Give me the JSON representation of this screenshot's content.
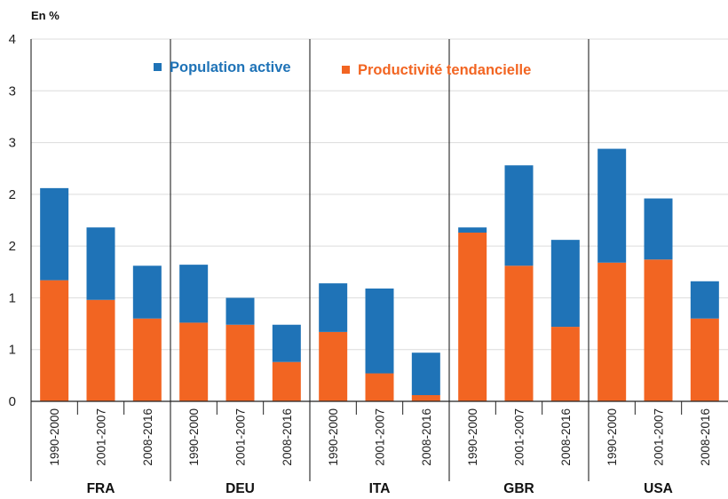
{
  "chart_data": {
    "type": "bar",
    "stacked": true,
    "unit_label": "En %",
    "y_ticks": [
      "0",
      "1",
      "1",
      "2",
      "2",
      "3",
      "3",
      "4"
    ],
    "ylim": [
      0,
      3.5
    ],
    "grid": true,
    "legend_position": "top",
    "groups": [
      "FRA",
      "DEU",
      "ITA",
      "GBR",
      "USA"
    ],
    "periods": [
      "1990-2000",
      "2001-2007",
      "2008-2016"
    ],
    "series": [
      {
        "name": "Productivité tendancielle",
        "color": "#f26522",
        "values": [
          1.17,
          0.98,
          0.8,
          0.76,
          0.74,
          0.38,
          0.67,
          0.27,
          0.06,
          1.63,
          1.31,
          0.72,
          1.34,
          1.37,
          0.8
        ]
      },
      {
        "name": "Population active",
        "color": "#1f73b7",
        "values": [
          0.89,
          0.7,
          0.51,
          0.56,
          0.26,
          0.36,
          0.47,
          0.82,
          0.41,
          0.05,
          0.97,
          0.84,
          1.1,
          0.59,
          0.36
        ]
      }
    ]
  }
}
